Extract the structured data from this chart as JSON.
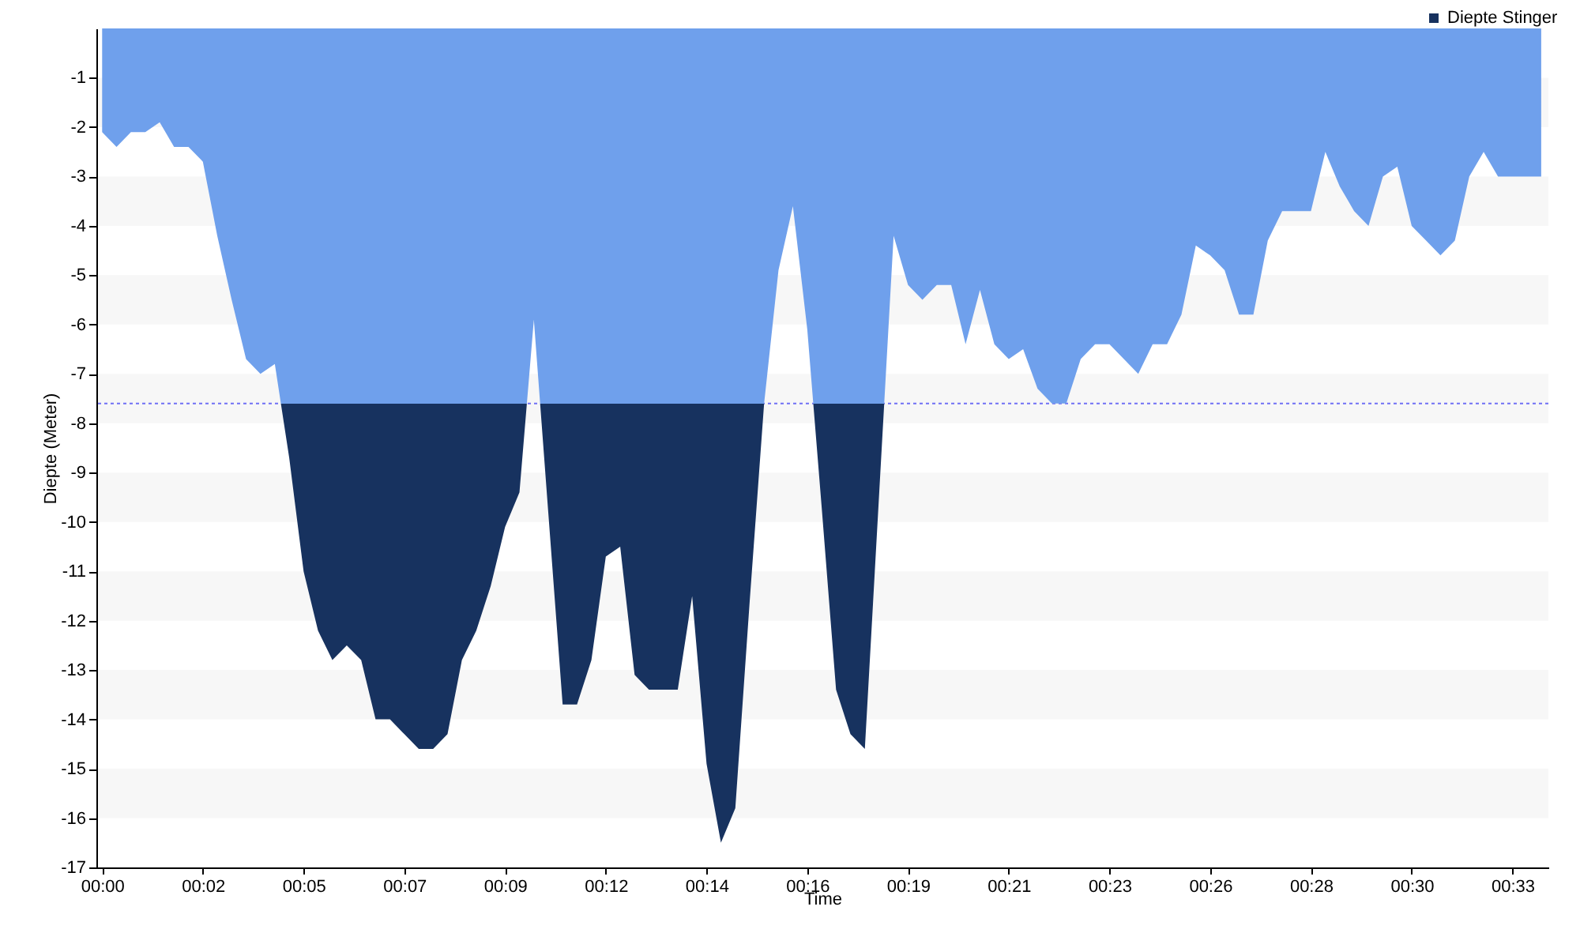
{
  "chart_data": {
    "type": "area",
    "xlabel": "Time",
    "ylabel": "Diepte (Meter)",
    "x": [
      0,
      20,
      40,
      60,
      80,
      100,
      120,
      140,
      160,
      180,
      200,
      220,
      240,
      260,
      280,
      300,
      320,
      340,
      360,
      380,
      400,
      420,
      440,
      460,
      480,
      500,
      520,
      540,
      560,
      580,
      600,
      620,
      640,
      660,
      680,
      700,
      720,
      740,
      760,
      780,
      800,
      820,
      840,
      860,
      880,
      900,
      920,
      940,
      960,
      980,
      1000,
      1020,
      1040,
      1060,
      1080,
      1100,
      1120,
      1140,
      1160,
      1180,
      1200,
      1220,
      1240,
      1260,
      1280,
      1300,
      1320,
      1340,
      1360,
      1380,
      1400,
      1420,
      1440,
      1460,
      1480,
      1500,
      1520,
      1540,
      1560,
      1580,
      1600,
      1620,
      1640,
      1660,
      1680,
      1700,
      1720,
      1740,
      1760,
      1780,
      1800,
      1820,
      1840,
      1860,
      1880,
      1900,
      1920,
      1940,
      1960,
      1980,
      2000
    ],
    "series": [
      {
        "name": "Diepte Stinger",
        "colors": [
          "#6fa0ec",
          "#6fa0ec",
          "#6fa0ec",
          "#6fa0ec",
          "#6fa0ec",
          "#6fa0ec",
          "#6fa0ec",
          "#6fa0ec",
          "#6fa0ec",
          "#6fa0ec",
          "#6fa0ec",
          "#6fa0ec",
          "#6fa0ec",
          "#17325f",
          "#17325f",
          "#17325f",
          "#17325f",
          "#17325f",
          "#17325f",
          "#17325f",
          "#17325f",
          "#17325f",
          "#17325f",
          "#17325f",
          "#17325f",
          "#17325f",
          "#17325f",
          "#17325f",
          "#17325f",
          "#17325f",
          "#6fa0ec",
          "#17325f",
          "#17325f",
          "#17325f",
          "#17325f",
          "#17325f",
          "#17325f",
          "#17325f",
          "#17325f",
          "#17325f",
          "#17325f",
          "#17325f",
          "#17325f",
          "#17325f",
          "#17325f",
          "#17325f",
          "#6fa0ec",
          "#6fa0ec",
          "#6fa0ec",
          "#6fa0ec",
          "#17325f",
          "#17325f",
          "#17325f",
          "#17325f",
          "#17325f",
          "#6fa0ec",
          "#6fa0ec",
          "#6fa0ec",
          "#6fa0ec",
          "#6fa0ec",
          "#6fa0ec",
          "#6fa0ec",
          "#6fa0ec",
          "#6fa0ec",
          "#6fa0ec",
          "#6fa0ec",
          "#6fa0ec",
          "#6fa0ec",
          "#6fa0ec",
          "#6fa0ec",
          "#6fa0ec",
          "#6fa0ec",
          "#6fa0ec",
          "#6fa0ec",
          "#6fa0ec",
          "#6fa0ec",
          "#6fa0ec",
          "#6fa0ec",
          "#6fa0ec",
          "#6fa0ec",
          "#6fa0ec",
          "#6fa0ec",
          "#6fa0ec",
          "#6fa0ec",
          "#6fa0ec",
          "#6fa0ec",
          "#6fa0ec",
          "#6fa0ec",
          "#6fa0ec",
          "#6fa0ec",
          "#6fa0ec",
          "#6fa0ec",
          "#6fa0ec",
          "#6fa0ec",
          "#6fa0ec",
          "#6fa0ec",
          "#6fa0ec",
          "#6fa0ec",
          "#6fa0ec",
          "#6fa0ec",
          "#6fa0ec"
        ],
        "values": [
          -2.1,
          -2.4,
          -2.1,
          -2.1,
          -1.9,
          -2.4,
          -2.4,
          -2.7,
          -4.2,
          -5.5,
          -6.7,
          -7.0,
          -6.8,
          -8.7,
          -11.0,
          -12.2,
          -12.8,
          -12.5,
          -12.8,
          -14.0,
          -14.0,
          -14.3,
          -14.6,
          -14.6,
          -14.3,
          -12.8,
          -12.2,
          -11.3,
          -10.1,
          -9.4,
          -5.9,
          -9.8,
          -13.7,
          -13.7,
          -12.8,
          -10.7,
          -10.5,
          -13.1,
          -13.4,
          -13.4,
          -13.4,
          -11.5,
          -14.9,
          -16.5,
          -15.8,
          -11.6,
          -7.6,
          -4.9,
          -3.6,
          -6.1,
          -9.7,
          -13.4,
          -14.3,
          -14.6,
          -9.4,
          -4.2,
          -5.2,
          -5.5,
          -5.2,
          -5.2,
          -6.4,
          -5.3,
          -6.4,
          -6.7,
          -6.5,
          -7.3,
          -7.6,
          -7.6,
          -6.7,
          -6.4,
          -6.4,
          -6.7,
          -7.0,
          -6.4,
          -6.4,
          -5.8,
          -4.4,
          -4.6,
          -4.9,
          -5.8,
          -5.8,
          -4.3,
          -3.7,
          -3.7,
          -3.7,
          -2.5,
          -3.2,
          -3.7,
          -4.0,
          -3.0,
          -2.8,
          -4.0,
          -4.3,
          -4.6,
          -4.3,
          -3.0,
          -2.5,
          -3.0,
          -3.0,
          -3.0,
          -3.0
        ]
      }
    ],
    "xlim": [
      -8,
      2010
    ],
    "ylim": [
      -17,
      0
    ],
    "xticks": [
      {
        "value": 0,
        "label": "00:00"
      },
      {
        "value": 140,
        "label": "00:02"
      },
      {
        "value": 280,
        "label": "00:05"
      },
      {
        "value": 420,
        "label": "00:07"
      },
      {
        "value": 560,
        "label": "00:09"
      },
      {
        "value": 700,
        "label": "00:12"
      },
      {
        "value": 840,
        "label": "00:14"
      },
      {
        "value": 980,
        "label": "00:16"
      },
      {
        "value": 1120,
        "label": "00:19"
      },
      {
        "value": 1260,
        "label": "00:21"
      },
      {
        "value": 1400,
        "label": "00:23"
      },
      {
        "value": 1540,
        "label": "00:26"
      },
      {
        "value": 1680,
        "label": "00:28"
      },
      {
        "value": 1820,
        "label": "00:30"
      },
      {
        "value": 1960,
        "label": "00:33"
      }
    ],
    "yticks": [
      -17,
      -16,
      -15,
      -14,
      -13,
      -12,
      -11,
      -10,
      -9,
      -8,
      -7,
      -6,
      -5,
      -4,
      -3,
      -2,
      -1
    ],
    "ref_lines": [
      {
        "axis": "y",
        "value": -7.6,
        "color": "#7070f5",
        "line_style": "dotted"
      }
    ],
    "bands": [
      {
        "axis": "y",
        "from": -2,
        "to": -1,
        "color": "#f7f7f7"
      },
      {
        "axis": "y",
        "from": -4,
        "to": -3,
        "color": "#f7f7f7"
      },
      {
        "axis": "y",
        "from": -6,
        "to": -5,
        "color": "#f7f7f7"
      },
      {
        "axis": "y",
        "from": -8,
        "to": -7,
        "color": "#f7f7f7"
      },
      {
        "axis": "y",
        "from": -10,
        "to": -9,
        "color": "#f7f7f7"
      },
      {
        "axis": "y",
        "from": -12,
        "to": -11,
        "color": "#f7f7f7"
      },
      {
        "axis": "y",
        "from": -14,
        "to": -13,
        "color": "#f7f7f7"
      },
      {
        "axis": "y",
        "from": -16,
        "to": -15,
        "color": "#f7f7f7"
      }
    ],
    "legend": "top right"
  }
}
